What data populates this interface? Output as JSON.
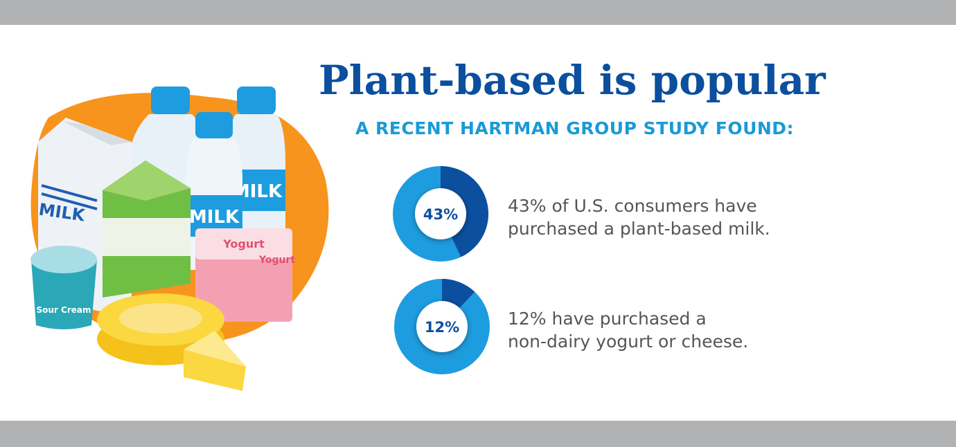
{
  "header": {
    "title": "Plant-based is popular",
    "subtitle": "A RECENT HARTMAN GROUP STUDY FOUND:"
  },
  "stats": [
    {
      "value": 43,
      "value_label": "43%",
      "lines": [
        "43% of U.S. consumers have",
        "purchased a plant-based milk."
      ]
    },
    {
      "value": 12,
      "value_label": "12%",
      "lines": [
        "12% have purchased a",
        "non-dairy yogurt or cheese."
      ]
    }
  ],
  "illustration": {
    "milk": "MILK",
    "yogurt": "Yogurt",
    "sour_cream": "Sour Cream"
  }
}
